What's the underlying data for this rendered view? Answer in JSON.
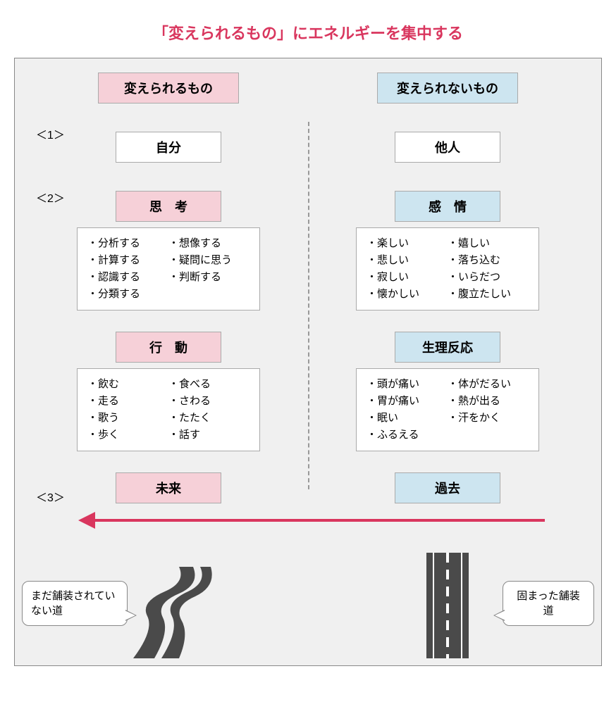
{
  "colors": {
    "title": "#d9365e",
    "left_bg": "#f6d0d8",
    "right_bg": "#cde5f0",
    "arrow": "#d9365e",
    "road": "#4a4a4a",
    "box_bg": "#f0f0f0"
  },
  "title": "「変えられるもの」にエネルギーを集中する",
  "left": {
    "header": "変えられるもの",
    "row1": "自分",
    "row2_title": "思　考",
    "row2_list_a": [
      "・分析する",
      "・計算する",
      "・認識する",
      "・分類する"
    ],
    "row2_list_b": [
      "・想像する",
      "・疑問に思う",
      "・判断する"
    ],
    "row3_title": "行　動",
    "row3_list_a": [
      "・飲む",
      "・走る",
      "・歌う",
      "・歩く"
    ],
    "row3_list_b": [
      "・食べる",
      "・さわる",
      "・たたく",
      "・話す"
    ],
    "row4": "未来",
    "road_label": "まだ舗装されていない道"
  },
  "right": {
    "header": "変えられないもの",
    "row1": "他人",
    "row2_title": "感　情",
    "row2_list_a": [
      "・楽しい",
      "・悲しい",
      "・寂しい",
      "・懐かしい"
    ],
    "row2_list_b": [
      "・嬉しい",
      "・落ち込む",
      "・いらだつ",
      "・腹立たしい"
    ],
    "row3_title": "生理反応",
    "row3_list_a": [
      "・頭が痛い",
      "・胃が痛い",
      "・眠い",
      "・ふるえる"
    ],
    "row3_list_b": [
      "・体がだるい",
      "・熱が出る",
      "・汗をかく"
    ],
    "row4": "過去",
    "road_label": "固まった舗装道"
  },
  "sections": {
    "s1": "＜1＞",
    "s2": "＜2＞",
    "s3": "＜3＞"
  }
}
